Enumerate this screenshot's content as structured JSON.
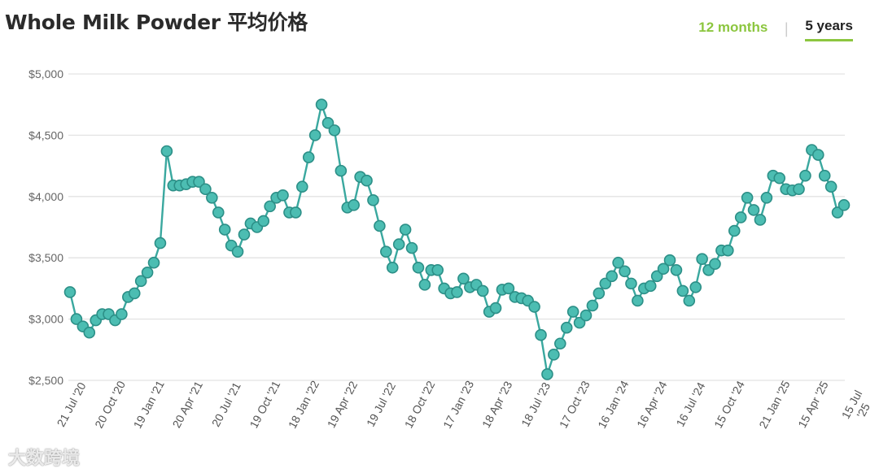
{
  "header": {
    "title": "Whole Milk Powder 平均价格",
    "tabs": [
      {
        "label": "12 months",
        "active": false
      },
      {
        "label": "5 years",
        "active": true
      }
    ],
    "separator": "|"
  },
  "watermark": "大数跨境",
  "colors": {
    "line": "#3aa89f",
    "marker_fill": "#4cbdb2",
    "marker_stroke": "#2c8f87",
    "accent": "#8cc63f",
    "grid": "#e3e3e3"
  },
  "chart_data": {
    "type": "line",
    "title": "Whole Milk Powder 平均价格",
    "xlabel": "",
    "ylabel": "",
    "ylim": [
      2500,
      5000
    ],
    "yticks": [
      2500,
      3000,
      3500,
      4000,
      4500,
      5000
    ],
    "ytick_labels": [
      "$2,500",
      "$3,000",
      "$3,500",
      "$4,000",
      "$4,500",
      "$5,000"
    ],
    "xtick_labels": [
      {
        "label": "21 Jul '20",
        "index": 0
      },
      {
        "label": "20 Oct '20",
        "index": 6
      },
      {
        "label": "19 Jan '21",
        "index": 12
      },
      {
        "label": "20 Apr '21",
        "index": 18
      },
      {
        "label": "20 Jul '21",
        "index": 24
      },
      {
        "label": "19 Oct '21",
        "index": 30
      },
      {
        "label": "18 Jan '22",
        "index": 36
      },
      {
        "label": "19 Apr '22",
        "index": 42
      },
      {
        "label": "19 Jul '22",
        "index": 48
      },
      {
        "label": "18 Oct '22",
        "index": 54
      },
      {
        "label": "17 Jan '23",
        "index": 60
      },
      {
        "label": "18 Apr '23",
        "index": 66
      },
      {
        "label": "18 Jul '23",
        "index": 72
      },
      {
        "label": "17 Oct '23",
        "index": 78
      },
      {
        "label": "16 Jan '24",
        "index": 84
      },
      {
        "label": "16 Apr '24",
        "index": 90
      },
      {
        "label": "16 Jul '24",
        "index": 96
      },
      {
        "label": "15 Oct '24",
        "index": 102
      },
      {
        "label": "21 Jan '25",
        "index": 109
      },
      {
        "label": "15 Apr '25",
        "index": 115
      },
      {
        "label": "15 Jul '25",
        "index": 121
      }
    ],
    "grid": true,
    "legend": "none",
    "series": [
      {
        "values": [
          3220,
          3000,
          2940,
          2890,
          2990,
          3040,
          3040,
          2990,
          3040,
          3180,
          3210,
          3310,
          3380,
          3460,
          3620,
          4370,
          4090,
          4090,
          4100,
          4120,
          4120,
          4060,
          3990,
          3870,
          3730,
          3600,
          3550,
          3690,
          3780,
          3750,
          3800,
          3920,
          3990,
          4010,
          3870,
          3870,
          4080,
          4320,
          4500,
          4750,
          4600,
          4540,
          4210,
          3910,
          3930,
          4160,
          4130,
          3970,
          3760,
          3550,
          3420,
          3610,
          3730,
          3580,
          3420,
          3280,
          3400,
          3400,
          3250,
          3210,
          3220,
          3330,
          3260,
          3280,
          3230,
          3060,
          3090,
          3240,
          3250,
          3180,
          3170,
          3150,
          3100,
          2870,
          2550,
          2710,
          2800,
          2930,
          3060,
          2970,
          3030,
          3110,
          3210,
          3290,
          3350,
          3460,
          3390,
          3290,
          3150,
          3250,
          3270,
          3350,
          3410,
          3480,
          3400,
          3230,
          3150,
          3260,
          3490,
          3400,
          3450,
          3560,
          3560,
          3720,
          3830,
          3990,
          3890,
          3810,
          3990,
          4170,
          4150,
          4060,
          4050,
          4060,
          4170,
          4380,
          4340,
          4170,
          4080,
          3870,
          3930
        ]
      }
    ]
  }
}
